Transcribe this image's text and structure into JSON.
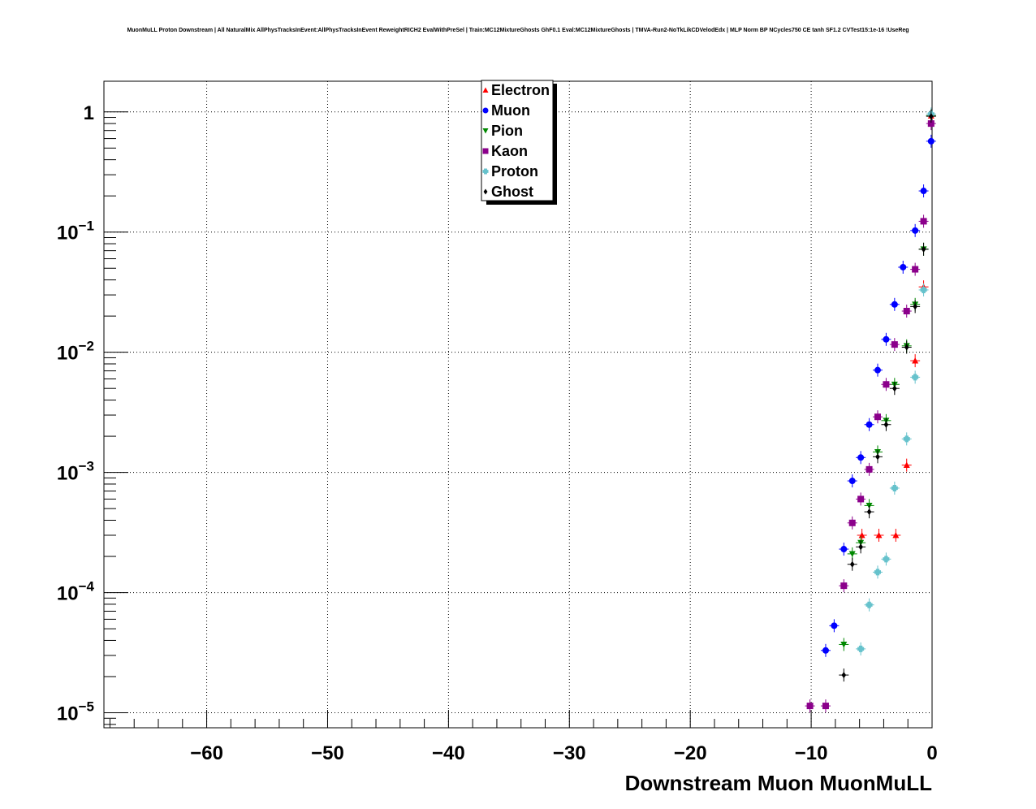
{
  "title": "MuonMuLL Proton Downstream | All NaturalMix AllPhysTracksInEvent:AllPhysTracksInEvent ReweightRICH2 EvalWithPreSel | Train:MC12MixtureGhosts GhF0.1 Eval:MC12MixtureGhosts | TMVA-Run2-NoTkLikCDVelodEdx | MLP Norm BP NCycles750 CE tanh SF1.2 CVTest15:1e-16 !UseReg",
  "chart_data": {
    "type": "scatter",
    "title": "MuonMuLL Proton Downstream | All NaturalMix AllPhysTracksInEvent:AllPhysTracksInEvent ReweightRICH2 EvalWithPreSel | Train:MC12MixtureGhosts GhF0.1 Eval:MC12MixtureGhosts | TMVA-Run2-NoTkLikCDVelodEdx | MLP Norm BP NCycles750 CE tanh SF1.2 CVTest15:1e-16 !UseReg",
    "xlabel": "Downstream Muon MuonMuLL",
    "ylabel": "",
    "xlim": [
      -68.5,
      0
    ],
    "ylim": [
      7.5e-06,
      1.8
    ],
    "yscale": "log",
    "grid": true,
    "legend_position": "top-center",
    "x_ticks": [
      -60,
      -50,
      -40,
      -30,
      -20,
      -10,
      0
    ],
    "x_tick_labels": [
      "−60",
      "−50",
      "−40",
      "−30",
      "−20",
      "−10",
      "0"
    ],
    "y_ticks": [
      {
        "value": 1e-05,
        "base": "10",
        "exp": "−5"
      },
      {
        "value": 0.0001,
        "base": "10",
        "exp": "−4"
      },
      {
        "value": 0.001,
        "base": "10",
        "exp": "−3"
      },
      {
        "value": 0.01,
        "base": "10",
        "exp": "−2"
      },
      {
        "value": 0.1,
        "base": "10",
        "exp": "−1"
      },
      {
        "value": 1,
        "base": "1",
        "exp": ""
      }
    ],
    "series": [
      {
        "name": "Electron",
        "color": "#ff0000",
        "marker": "triangle-up",
        "points": [
          [
            -0.08,
            0.93
          ],
          [
            -0.7,
            0.035
          ],
          [
            -1.4,
            0.0085
          ],
          [
            -2.1,
            0.00115
          ],
          [
            -3.0,
            0.0003
          ],
          [
            -4.4,
            0.0003
          ],
          [
            -5.8,
            0.0003
          ]
        ]
      },
      {
        "name": "Muon",
        "color": "#0000ff",
        "marker": "circle",
        "points": [
          [
            -0.08,
            0.57
          ],
          [
            -0.7,
            0.22
          ],
          [
            -1.4,
            0.103
          ],
          [
            -2.4,
            0.051
          ],
          [
            -3.1,
            0.025
          ],
          [
            -3.8,
            0.0128
          ],
          [
            -4.5,
            0.0071
          ],
          [
            -5.2,
            0.0025
          ],
          [
            -5.9,
            0.00133
          ],
          [
            -6.6,
            0.00085
          ],
          [
            -7.3,
            0.00023
          ],
          [
            -8.1,
            5.3e-05
          ],
          [
            -8.8,
            3.3e-05
          ]
        ]
      },
      {
        "name": "Pion",
        "color": "#008800",
        "marker": "triangle-down",
        "points": [
          [
            -0.08,
            0.93
          ],
          [
            -0.7,
            0.072
          ],
          [
            -1.4,
            0.025
          ],
          [
            -2.1,
            0.0113
          ],
          [
            -3.1,
            0.0054
          ],
          [
            -3.8,
            0.0027
          ],
          [
            -4.5,
            0.00148
          ],
          [
            -5.2,
            0.00053
          ],
          [
            -5.9,
            0.00026
          ],
          [
            -6.6,
            0.00021
          ],
          [
            -7.3,
            3.7e-05
          ]
        ]
      },
      {
        "name": "Kaon",
        "color": "#8b008b",
        "marker": "square",
        "points": [
          [
            -0.08,
            0.8
          ],
          [
            -0.7,
            0.123
          ],
          [
            -1.4,
            0.049
          ],
          [
            -2.1,
            0.022
          ],
          [
            -3.1,
            0.0116
          ],
          [
            -3.8,
            0.0054
          ],
          [
            -4.5,
            0.0029
          ],
          [
            -5.2,
            0.00106
          ],
          [
            -5.9,
            0.0006
          ],
          [
            -6.6,
            0.00038
          ],
          [
            -7.3,
            0.000114
          ],
          [
            -8.8,
            1.14e-05
          ],
          [
            -10.1,
            1.14e-05
          ]
        ]
      },
      {
        "name": "Proton",
        "color": "#66c2cc",
        "marker": "cross",
        "points": [
          [
            -0.08,
            0.96
          ],
          [
            -0.7,
            0.033
          ],
          [
            -1.4,
            0.0062
          ],
          [
            -2.1,
            0.0019
          ],
          [
            -3.1,
            0.00074
          ],
          [
            -3.8,
            0.00019
          ],
          [
            -4.5,
            0.000148
          ],
          [
            -5.2,
            7.9e-05
          ],
          [
            -5.9,
            3.4e-05
          ]
        ]
      },
      {
        "name": "Ghost",
        "color": "#000000",
        "marker": "diamond",
        "points": [
          [
            -0.08,
            0.92
          ],
          [
            -0.7,
            0.072
          ],
          [
            -1.4,
            0.024
          ],
          [
            -2.1,
            0.011
          ],
          [
            -3.1,
            0.005
          ],
          [
            -3.8,
            0.0025
          ],
          [
            -4.5,
            0.00135
          ],
          [
            -5.2,
            0.00047
          ],
          [
            -5.9,
            0.00024
          ],
          [
            -6.6,
            0.000172
          ],
          [
            -7.3,
            2.06e-05
          ]
        ]
      }
    ]
  }
}
